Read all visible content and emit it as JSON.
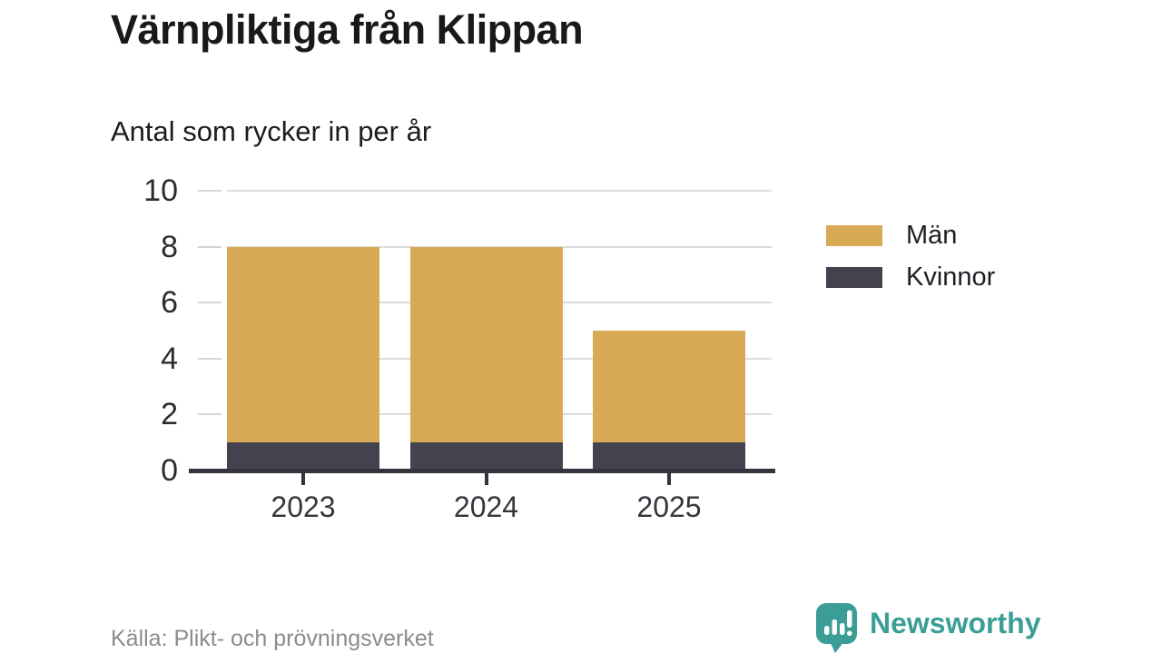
{
  "header": {
    "title": "Värnpliktiga från Klippan",
    "subtitle": "Antal som rycker in per år"
  },
  "footer": {
    "source": "Källa: Plikt- och prövningsverket",
    "brand": {
      "name": "Newsworthy",
      "color": "#3a9e97"
    }
  },
  "legend": {
    "items": [
      {
        "label": "Män",
        "color": "#d9aa55"
      },
      {
        "label": "Kvinnor",
        "color": "#45424f"
      }
    ]
  },
  "chart_data": {
    "type": "bar",
    "stacked": true,
    "title": "Värnpliktiga från Klippan",
    "subtitle": "Antal som rycker in per år",
    "categories": [
      "2023",
      "2024",
      "2025"
    ],
    "series": [
      {
        "name": "Män",
        "color": "#d9aa55",
        "values": [
          7,
          7,
          4
        ]
      },
      {
        "name": "Kvinnor",
        "color": "#45424f",
        "values": [
          1,
          1,
          1
        ]
      }
    ],
    "stacked_totals": [
      8,
      8,
      5
    ],
    "xlabel": "",
    "ylabel": "",
    "ylim": [
      0,
      10
    ],
    "yticks": [
      0,
      2,
      4,
      6,
      8,
      10
    ],
    "grid": true,
    "legend_position": "right",
    "colors": {
      "grid": "#dcdcdc",
      "axis": "#35343e",
      "tick_labels": "#2b2b31"
    }
  }
}
